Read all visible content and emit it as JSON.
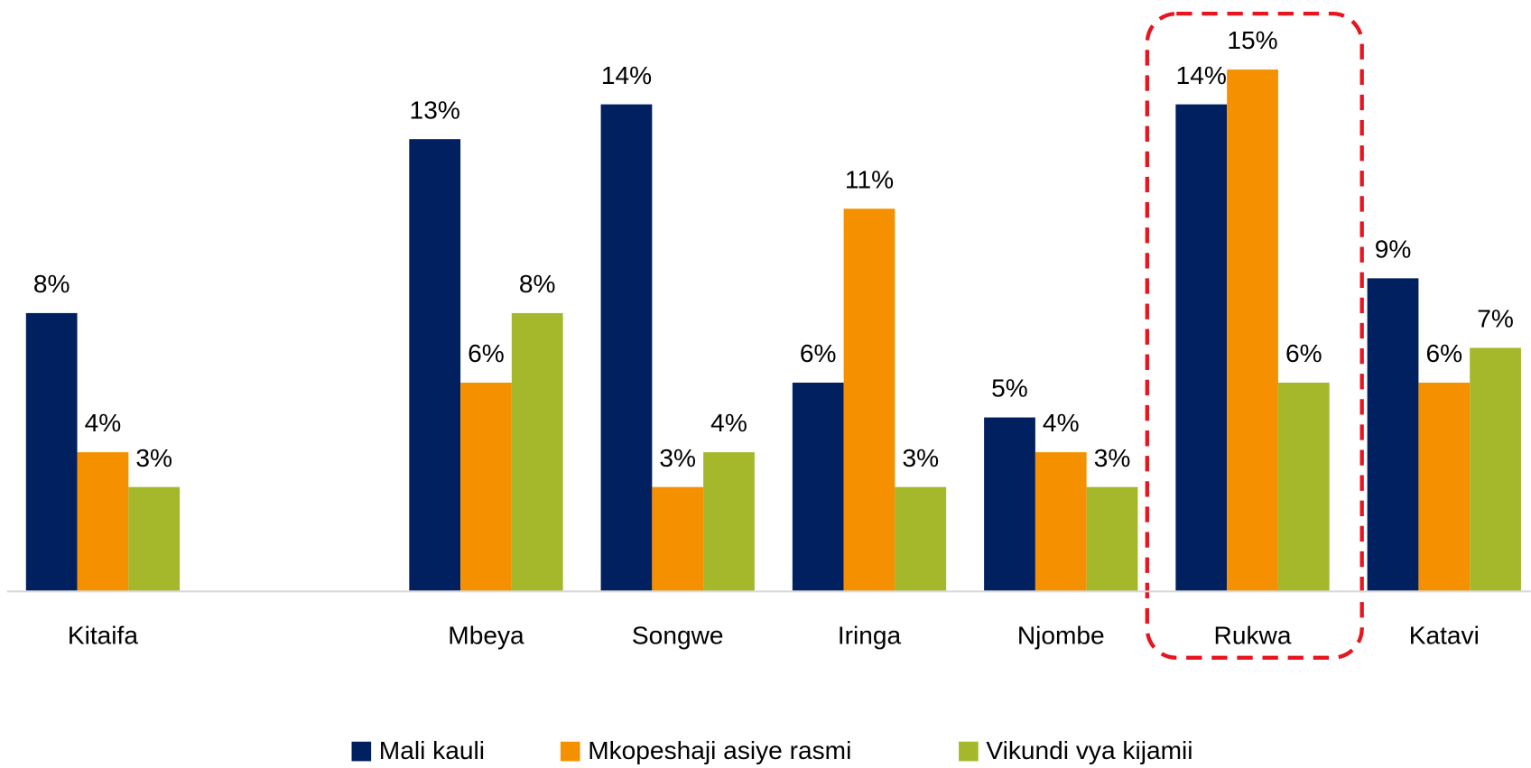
{
  "chart_data": {
    "type": "bar",
    "categories": [
      "Kitaifa",
      null,
      "Mbeya",
      "Songwe",
      "Iringa",
      "Njombe",
      "Rukwa",
      "Katavi"
    ],
    "series": [
      {
        "name": "Mali kauli",
        "color": "#002060",
        "values": [
          8,
          null,
          13,
          14,
          6,
          5,
          14,
          9
        ],
        "value_labels": [
          "8%",
          null,
          "13%",
          "14%",
          "6%",
          "5%",
          "14%",
          "9%"
        ]
      },
      {
        "name": "Mkopeshaji asiye rasmi",
        "color": "#f59100",
        "values": [
          4,
          null,
          6,
          3,
          11,
          4,
          15,
          6
        ],
        "value_labels": [
          "4%",
          null,
          "6%",
          "3%",
          "11%",
          "4%",
          "15%",
          "6%"
        ]
      },
      {
        "name": "Vikundi vya kijamii",
        "color": "#a5b82b",
        "values": [
          3,
          null,
          8,
          4,
          3,
          3,
          6,
          7
        ],
        "value_labels": [
          "3%",
          null,
          "8%",
          "4%",
          "3%",
          "3%",
          "6%",
          "7%"
        ]
      }
    ],
    "ylim": [
      0,
      17
    ],
    "legend": "bottom"
  }
}
